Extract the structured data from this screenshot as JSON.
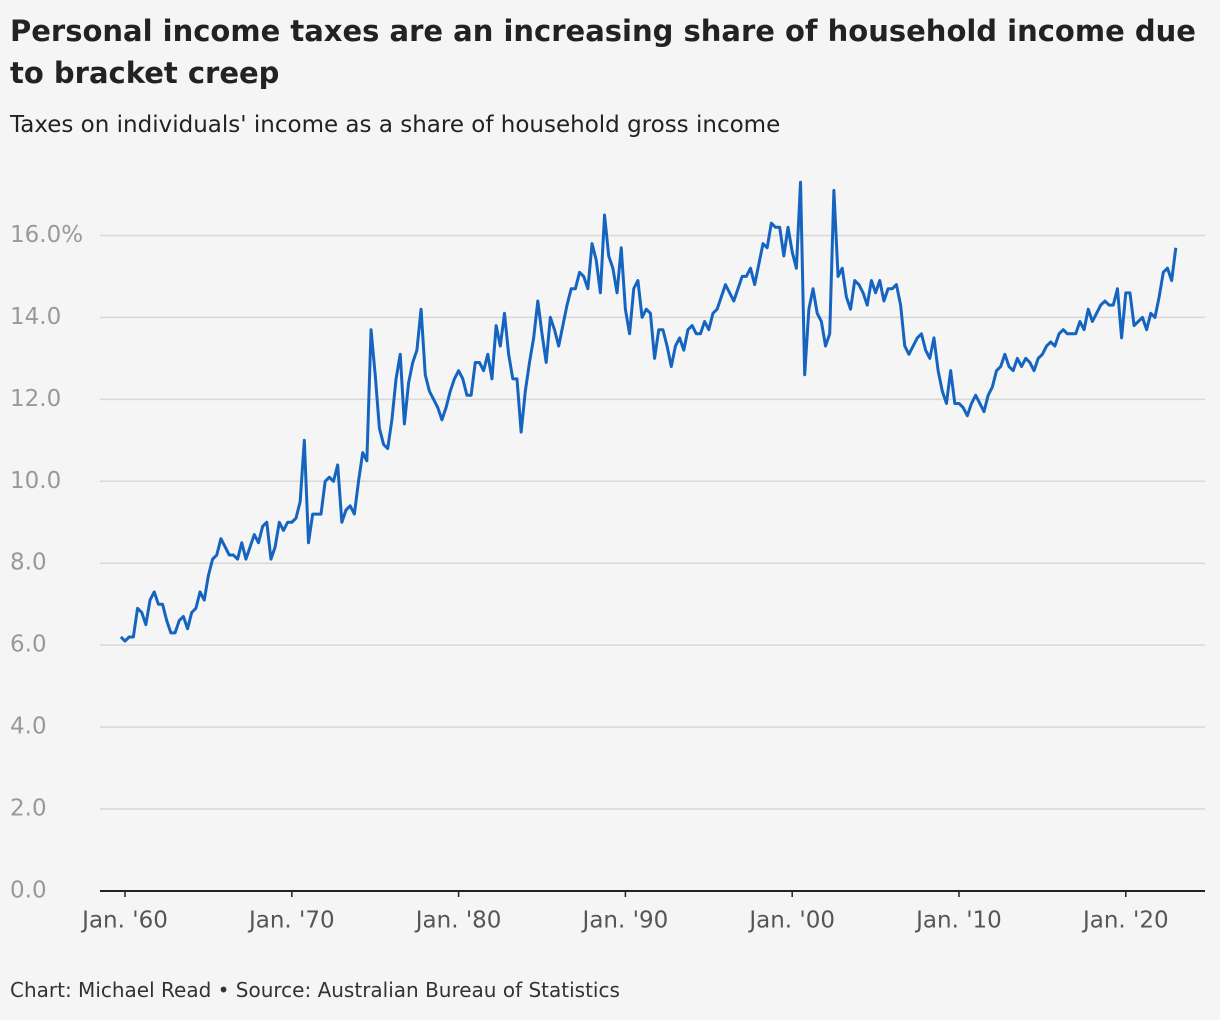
{
  "chart_data": {
    "type": "line",
    "title": "Personal income taxes are an increasing share of household income due to bracket creep",
    "subtitle": "Taxes on individuals' income as a share of household gross income",
    "source": "Chart: Michael Read • Source: Australian Bureau of Statistics",
    "x": [
      1959.75,
      1960,
      1960.25,
      1960.5,
      1960.75,
      1961,
      1961.25,
      1961.5,
      1961.75,
      1962,
      1962.25,
      1962.5,
      1962.75,
      1963,
      1963.25,
      1963.5,
      1963.75,
      1964,
      1964.25,
      1964.5,
      1964.75,
      1965,
      1965.25,
      1965.5,
      1965.75,
      1966,
      1966.25,
      1966.5,
      1966.75,
      1967,
      1967.25,
      1967.5,
      1967.75,
      1968,
      1968.25,
      1968.5,
      1968.75,
      1969,
      1969.25,
      1969.5,
      1969.75,
      1970,
      1970.25,
      1970.5,
      1970.75,
      1971,
      1971.25,
      1971.5,
      1971.75,
      1972,
      1972.25,
      1972.5,
      1972.75,
      1973,
      1973.25,
      1973.5,
      1973.75,
      1974,
      1974.25,
      1974.5,
      1974.75,
      1975,
      1975.25,
      1975.5,
      1975.75,
      1976,
      1976.25,
      1976.5,
      1976.75,
      1977,
      1977.25,
      1977.5,
      1977.75,
      1978,
      1978.25,
      1978.5,
      1978.75,
      1979,
      1979.25,
      1979.5,
      1979.75,
      1980,
      1980.25,
      1980.5,
      1980.75,
      1981,
      1981.25,
      1981.5,
      1981.75,
      1982,
      1982.25,
      1982.5,
      1982.75,
      1983,
      1983.25,
      1983.5,
      1983.75,
      1984,
      1984.25,
      1984.5,
      1984.75,
      1985,
      1985.25,
      1985.5,
      1985.75,
      1986,
      1986.25,
      1986.5,
      1986.75,
      1987,
      1987.25,
      1987.5,
      1987.75,
      1988,
      1988.25,
      1988.5,
      1988.75,
      1989,
      1989.25,
      1989.5,
      1989.75,
      1990,
      1990.25,
      1990.5,
      1990.75,
      1991,
      1991.25,
      1991.5,
      1991.75,
      1992,
      1992.25,
      1992.5,
      1992.75,
      1993,
      1993.25,
      1993.5,
      1993.75,
      1994,
      1994.25,
      1994.5,
      1994.75,
      1995,
      1995.25,
      1995.5,
      1995.75,
      1996,
      1996.25,
      1996.5,
      1996.75,
      1997,
      1997.25,
      1997.5,
      1997.75,
      1998,
      1998.25,
      1998.5,
      1998.75,
      1999,
      1999.25,
      1999.5,
      1999.75,
      2000,
      2000.25,
      2000.5,
      2000.75,
      2001,
      2001.25,
      2001.5,
      2001.75,
      2002,
      2002.25,
      2002.5,
      2002.75,
      2003,
      2003.25,
      2003.5,
      2003.75,
      2004,
      2004.25,
      2004.5,
      2004.75,
      2005,
      2005.25,
      2005.5,
      2005.75,
      2006,
      2006.25,
      2006.5,
      2006.75,
      2007,
      2007.25,
      2007.5,
      2007.75,
      2008,
      2008.25,
      2008.5,
      2008.75,
      2009,
      2009.25,
      2009.5,
      2009.75,
      2010,
      2010.25,
      2010.5,
      2010.75,
      2011,
      2011.25,
      2011.5,
      2011.75,
      2012,
      2012.25,
      2012.5,
      2012.75,
      2013,
      2013.25,
      2013.5,
      2013.75,
      2014,
      2014.25,
      2014.5,
      2014.75,
      2015,
      2015.25,
      2015.5,
      2015.75,
      2016,
      2016.25,
      2016.5,
      2016.75,
      2017,
      2017.25,
      2017.5,
      2017.75,
      2018,
      2018.25,
      2018.5,
      2018.75,
      2019,
      2019.25,
      2019.5,
      2019.75,
      2020,
      2020.25,
      2020.5,
      2020.75,
      2021,
      2021.25,
      2021.5,
      2021.75,
      2022,
      2022.25,
      2022.5,
      2022.75,
      2023
    ],
    "series": [
      {
        "name": "Taxes on individuals' income share",
        "color": "#1565c0",
        "values": [
          6.2,
          6.1,
          6.2,
          6.2,
          6.9,
          6.8,
          6.5,
          7.1,
          7.3,
          7.0,
          7.0,
          6.6,
          6.3,
          6.3,
          6.6,
          6.7,
          6.4,
          6.8,
          6.9,
          7.3,
          7.1,
          7.7,
          8.1,
          8.2,
          8.6,
          8.4,
          8.2,
          8.2,
          8.1,
          8.5,
          8.1,
          8.4,
          8.7,
          8.5,
          8.9,
          9.0,
          8.1,
          8.4,
          9.0,
          8.8,
          9.0,
          9.0,
          9.1,
          9.5,
          11.0,
          8.5,
          9.2,
          9.2,
          9.2,
          10.0,
          10.1,
          10.0,
          10.4,
          9.0,
          9.3,
          9.4,
          9.2,
          10.0,
          10.7,
          10.5,
          13.7,
          12.6,
          11.3,
          10.9,
          10.8,
          11.5,
          12.5,
          13.1,
          11.4,
          12.4,
          12.9,
          13.2,
          14.2,
          12.6,
          12.2,
          12.0,
          11.8,
          11.5,
          11.8,
          12.2,
          12.5,
          12.7,
          12.5,
          12.1,
          12.1,
          12.9,
          12.9,
          12.7,
          13.1,
          12.5,
          13.8,
          13.3,
          14.1,
          13.1,
          12.5,
          12.5,
          11.2,
          12.2,
          12.9,
          13.5,
          14.4,
          13.6,
          12.9,
          14.0,
          13.7,
          13.3,
          13.8,
          14.3,
          14.7,
          14.7,
          15.1,
          15.0,
          14.7,
          15.8,
          15.4,
          14.6,
          16.5,
          15.5,
          15.2,
          14.6,
          15.7,
          14.2,
          13.6,
          14.7,
          14.9,
          14.0,
          14.2,
          14.1,
          13.0,
          13.7,
          13.7,
          13.3,
          12.8,
          13.3,
          13.5,
          13.2,
          13.7,
          13.8,
          13.6,
          13.6,
          13.9,
          13.7,
          14.1,
          14.2,
          14.5,
          14.8,
          14.6,
          14.4,
          14.7,
          15.0,
          15.0,
          15.2,
          14.8,
          15.3,
          15.8,
          15.7,
          16.3,
          16.2,
          16.2,
          15.5,
          16.2,
          15.6,
          15.2,
          17.3,
          12.6,
          14.2,
          14.7,
          14.1,
          13.9,
          13.3,
          13.6,
          17.1,
          15.0,
          15.2,
          14.5,
          14.2,
          14.9,
          14.8,
          14.6,
          14.3,
          14.9,
          14.6,
          14.9,
          14.4,
          14.7,
          14.7,
          14.8,
          14.3,
          13.3,
          13.1,
          13.3,
          13.5,
          13.6,
          13.2,
          13.0,
          13.5,
          12.7,
          12.2,
          11.9,
          12.7,
          11.9,
          11.9,
          11.8,
          11.6,
          11.9,
          12.1,
          11.9,
          11.7,
          12.1,
          12.3,
          12.7,
          12.8,
          13.1,
          12.8,
          12.7,
          13.0,
          12.8,
          13.0,
          12.9,
          12.7,
          13.0,
          13.1,
          13.3,
          13.4,
          13.3,
          13.6,
          13.7,
          13.6,
          13.6,
          13.6,
          13.9,
          13.7,
          14.2,
          13.9,
          14.1,
          14.3,
          14.4,
          14.3,
          14.3,
          14.7,
          13.5,
          14.6,
          14.6,
          13.8,
          13.9,
          14.0,
          13.7,
          14.1,
          14.0,
          14.5,
          15.1,
          15.2,
          14.9,
          15.7
        ]
      }
    ],
    "xlim": [
      1958.5,
      2024.75
    ],
    "xticks": [
      {
        "value": 1960,
        "label": "Jan. '60"
      },
      {
        "value": 1970,
        "label": "Jan. '70"
      },
      {
        "value": 1980,
        "label": "Jan. '80"
      },
      {
        "value": 1990,
        "label": "Jan. '90"
      },
      {
        "value": 2000,
        "label": "Jan. '00"
      },
      {
        "value": 2010,
        "label": "Jan. '10"
      },
      {
        "value": 2020,
        "label": "Jan. '20"
      }
    ],
    "ylim": [
      0,
      17.5
    ],
    "yticks": [
      {
        "value": 0,
        "label": "0.0"
      },
      {
        "value": 2,
        "label": "2.0"
      },
      {
        "value": 4,
        "label": "4.0"
      },
      {
        "value": 6,
        "label": "6.0"
      },
      {
        "value": 8,
        "label": "8.0"
      },
      {
        "value": 10,
        "label": "10.0"
      },
      {
        "value": 12,
        "label": "12.0"
      },
      {
        "value": 14,
        "label": "14.0"
      },
      {
        "value": 16,
        "label": "16.0%"
      }
    ],
    "grid": true
  }
}
